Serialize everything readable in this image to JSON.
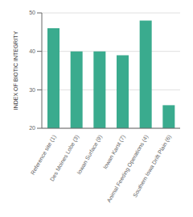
{
  "chart_data": {
    "type": "bar",
    "ylabel": "INDEX OF BIOTIC INTEGRITY",
    "categories": [
      "Reference site (1)",
      "Des Moines Lobe (3)",
      "Iowan Surface (9)",
      "Iowan Karst (7)",
      "Animal Feeding Operations (4)",
      "Southern Iowa Drift Plain (6)"
    ],
    "values": [
      46,
      40,
      40,
      39,
      48,
      26
    ],
    "color": "#3aab8e",
    "ylim": [
      20,
      50
    ],
    "yticks": [
      20,
      30,
      40,
      50
    ],
    "grid": true
  }
}
